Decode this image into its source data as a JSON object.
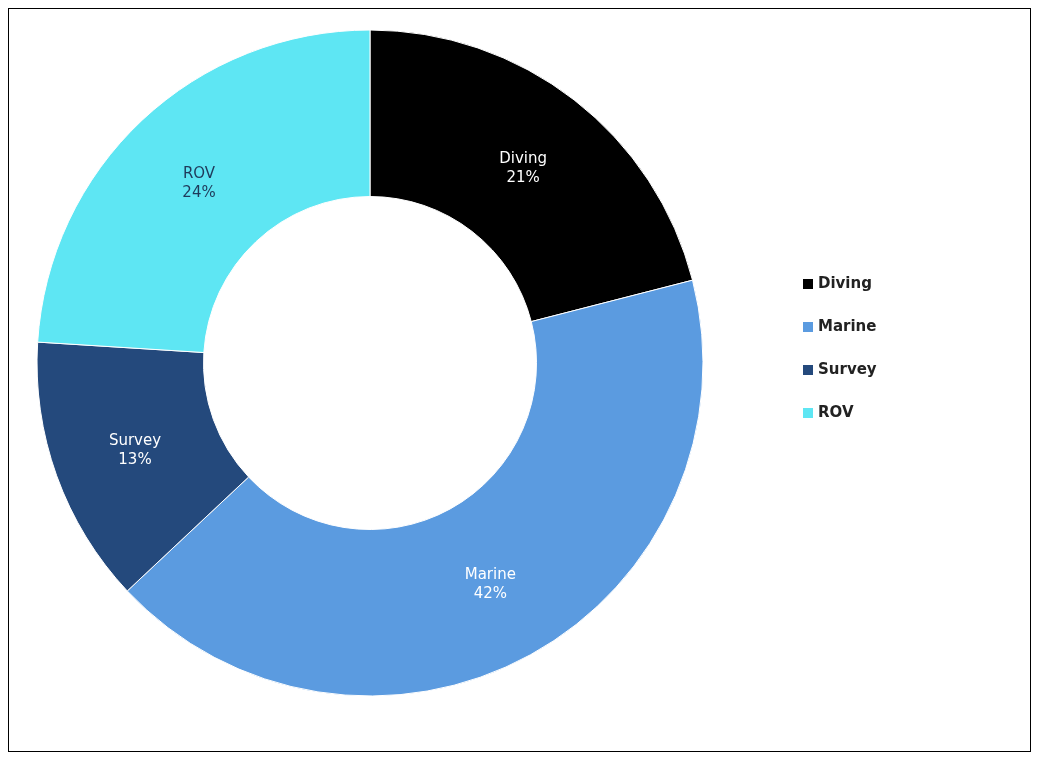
{
  "chart_data": {
    "type": "donut",
    "categories": [
      "Diving",
      "Marine",
      "Survey",
      "ROV"
    ],
    "values": [
      21,
      42,
      13,
      24
    ],
    "colors": [
      "#000000",
      "#5b9be0",
      "#24497c",
      "#5ee6f3"
    ],
    "value_labels": [
      "21%",
      "42%",
      "13%",
      "24%"
    ],
    "legend": "right"
  }
}
